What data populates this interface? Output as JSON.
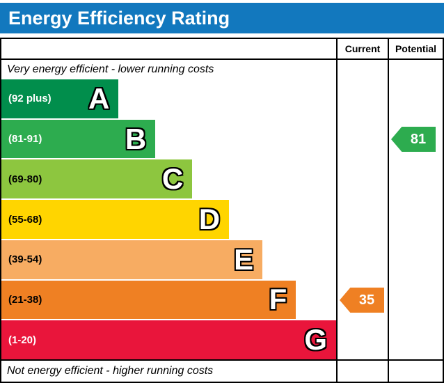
{
  "page": {
    "title": "Energy Efficiency Rating",
    "title_bg": "#1278be"
  },
  "columns": {
    "current": "Current",
    "potential": "Potential"
  },
  "annotations": {
    "top": "Very energy efficient - lower running costs",
    "bottom": "Not energy efficient - higher running costs"
  },
  "chart_data": {
    "type": "bar",
    "title": "Energy Efficiency Rating",
    "orientation": "horizontal",
    "bands": [
      {
        "letter": "A",
        "range": "(92 plus)",
        "color": "#018e4c",
        "text_color": "#ffffff",
        "width_pct": 35
      },
      {
        "letter": "B",
        "range": "(81-91)",
        "color": "#2dac4f",
        "text_color": "#ffffff",
        "width_pct": 46
      },
      {
        "letter": "C",
        "range": "(69-80)",
        "color": "#8dc63f",
        "text_color": "#000000",
        "width_pct": 57
      },
      {
        "letter": "D",
        "range": "(55-68)",
        "color": "#ffd500",
        "text_color": "#000000",
        "width_pct": 68
      },
      {
        "letter": "E",
        "range": "(39-54)",
        "color": "#f7ac62",
        "text_color": "#000000",
        "width_pct": 78
      },
      {
        "letter": "F",
        "range": "(21-38)",
        "color": "#ef8023",
        "text_color": "#000000",
        "width_pct": 88
      },
      {
        "letter": "G",
        "range": "(1-20)",
        "color": "#e9153b",
        "text_color": "#ffffff",
        "width_pct": 100
      }
    ],
    "current": {
      "value": 35,
      "band": "F",
      "band_index": 5,
      "color": "#ef8023"
    },
    "potential": {
      "value": 81,
      "band": "B",
      "band_index": 1,
      "color": "#2dac4f"
    }
  }
}
